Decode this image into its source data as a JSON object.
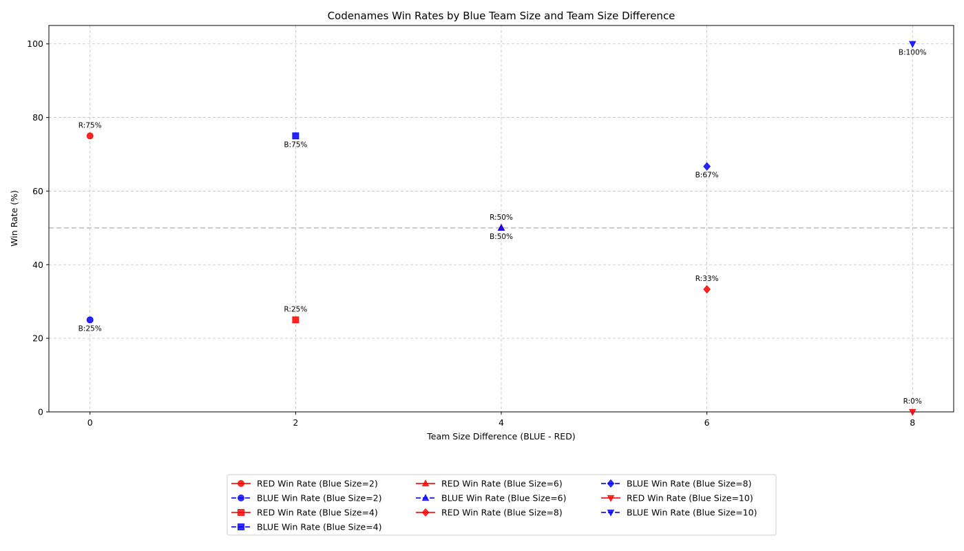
{
  "chart_data": {
    "type": "scatter",
    "title": "Codenames Win Rates by Blue Team Size and Team Size Difference",
    "xlabel": "Team Size Difference (BLUE - RED)",
    "ylabel": "Win Rate (%)",
    "xlim": [
      -0.4,
      8.4
    ],
    "ylim": [
      0,
      105
    ],
    "xticks": [
      0,
      2,
      4,
      6,
      8
    ],
    "yticks": [
      0,
      20,
      40,
      60,
      80,
      100
    ],
    "grid": true,
    "reference_line": 50,
    "legend_position": "bottom-center",
    "colors": {
      "red": "#ff0000",
      "blue": "#0000ff"
    },
    "series": [
      {
        "name": "RED Win Rate (Blue Size=2)",
        "team": "red",
        "marker": "circle",
        "x": [
          0
        ],
        "y": [
          75
        ],
        "labels": [
          "R:75%"
        ]
      },
      {
        "name": "BLUE Win Rate (Blue Size=2)",
        "team": "blue",
        "marker": "circle",
        "x": [
          0
        ],
        "y": [
          25
        ],
        "labels": [
          "B:25%"
        ]
      },
      {
        "name": "RED Win Rate (Blue Size=4)",
        "team": "red",
        "marker": "square",
        "x": [
          2
        ],
        "y": [
          25
        ],
        "labels": [
          "R:25%"
        ]
      },
      {
        "name": "BLUE Win Rate (Blue Size=4)",
        "team": "blue",
        "marker": "square",
        "x": [
          2
        ],
        "y": [
          75
        ],
        "labels": [
          "B:75%"
        ]
      },
      {
        "name": "RED Win Rate (Blue Size=6)",
        "team": "red",
        "marker": "triangle-up",
        "x": [
          4
        ],
        "y": [
          50
        ],
        "labels": [
          "R:50%"
        ]
      },
      {
        "name": "BLUE Win Rate (Blue Size=6)",
        "team": "blue",
        "marker": "triangle-up",
        "x": [
          4
        ],
        "y": [
          50
        ],
        "labels": [
          "B:50%"
        ]
      },
      {
        "name": "RED Win Rate (Blue Size=8)",
        "team": "red",
        "marker": "diamond",
        "x": [
          6
        ],
        "y": [
          33.3
        ],
        "labels": [
          "R:33%"
        ]
      },
      {
        "name": "BLUE Win Rate (Blue Size=8)",
        "team": "blue",
        "marker": "diamond",
        "x": [
          6
        ],
        "y": [
          66.7
        ],
        "labels": [
          "B:67%"
        ]
      },
      {
        "name": "RED Win Rate (Blue Size=10)",
        "team": "red",
        "marker": "triangle-down",
        "x": [
          8
        ],
        "y": [
          0
        ],
        "labels": [
          "R:0%"
        ]
      },
      {
        "name": "BLUE Win Rate (Blue Size=10)",
        "team": "blue",
        "marker": "triangle-down",
        "x": [
          8
        ],
        "y": [
          100
        ],
        "labels": [
          "B:100%"
        ]
      }
    ]
  }
}
